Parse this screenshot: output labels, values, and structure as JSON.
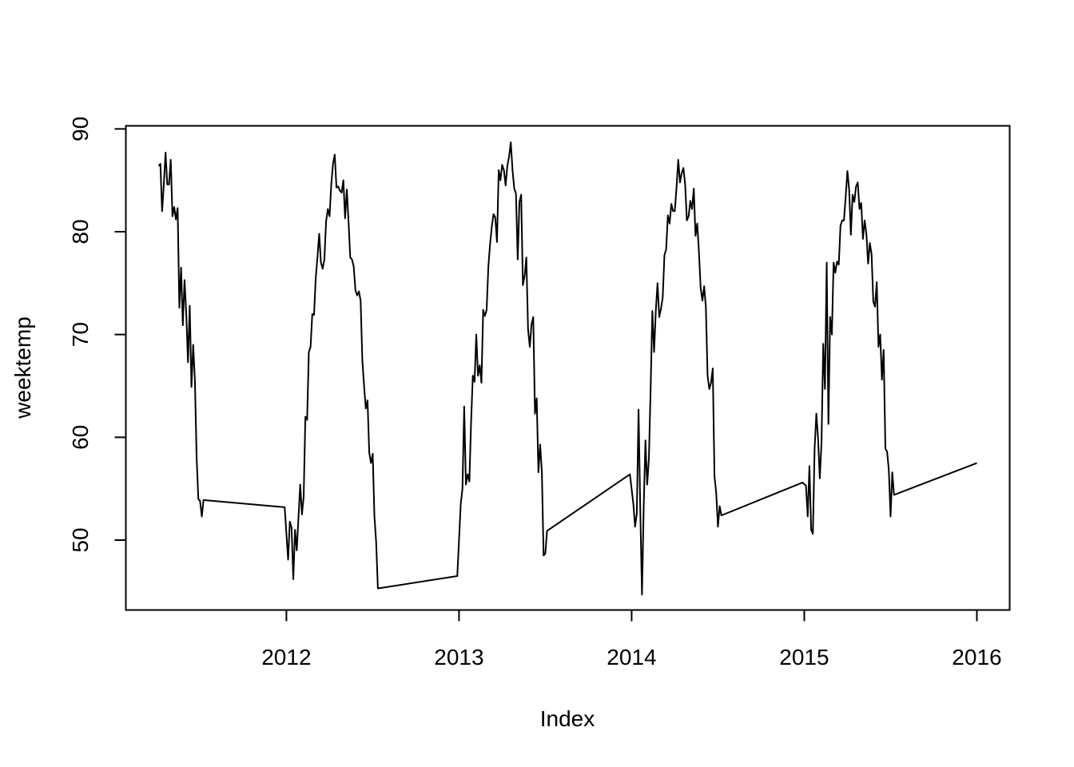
{
  "chart_data": {
    "type": "line",
    "title": "",
    "xlabel": "Index",
    "ylabel": "weektemp",
    "xlim": [
      2011.07,
      2016.19
    ],
    "ylim": [
      43.2,
      90.3
    ],
    "x_ticks": [
      2012,
      2013,
      2014,
      2015,
      2016
    ],
    "x_tick_labels": [
      "2012",
      "2013",
      "2014",
      "2015",
      "2016"
    ],
    "y_ticks": [
      50,
      60,
      70,
      80,
      90
    ],
    "y_tick_labels": [
      "50",
      "60",
      "70",
      "80",
      "90"
    ],
    "grid": false,
    "legend": "none",
    "line_color": "#000000",
    "series": [
      {
        "points": [
          [
            2011.26,
            86.4
          ],
          [
            2011.27,
            86.6
          ],
          [
            2011.28,
            82.0
          ],
          [
            2011.29,
            84.6
          ],
          [
            2011.3,
            87.7
          ],
          [
            2011.31,
            84.6
          ],
          [
            2011.32,
            84.6
          ],
          [
            2011.33,
            87.0
          ],
          [
            2011.34,
            81.5
          ],
          [
            2011.35,
            82.4
          ],
          [
            2011.36,
            81.2
          ],
          [
            2011.37,
            82.3
          ],
          [
            2011.38,
            72.6
          ],
          [
            2011.39,
            76.5
          ],
          [
            2011.4,
            70.9
          ],
          [
            2011.41,
            75.3
          ],
          [
            2011.42,
            72.0
          ],
          [
            2011.43,
            67.3
          ],
          [
            2011.44,
            72.8
          ],
          [
            2011.45,
            64.9
          ],
          [
            2011.46,
            69.0
          ],
          [
            2011.47,
            65.5
          ],
          [
            2011.48,
            58.0
          ],
          [
            2011.49,
            54.0
          ],
          [
            2011.5,
            53.8
          ],
          [
            2011.51,
            52.3
          ],
          [
            2011.52,
            53.9
          ],
          [
            2011.99,
            53.2
          ],
          [
            2012.01,
            48.1
          ],
          [
            2012.02,
            51.8
          ],
          [
            2012.03,
            51.2
          ],
          [
            2012.04,
            46.2
          ],
          [
            2012.05,
            51.0
          ],
          [
            2012.06,
            49.0
          ],
          [
            2012.08,
            55.4
          ],
          [
            2012.09,
            52.5
          ],
          [
            2012.1,
            54.2
          ],
          [
            2012.11,
            62.0
          ],
          [
            2012.12,
            61.7
          ],
          [
            2012.13,
            68.3
          ],
          [
            2012.14,
            68.8
          ],
          [
            2012.15,
            72.0
          ],
          [
            2012.16,
            71.9
          ],
          [
            2012.17,
            75.5
          ],
          [
            2012.18,
            77.5
          ],
          [
            2012.19,
            79.8
          ],
          [
            2012.2,
            77.0
          ],
          [
            2012.21,
            76.4
          ],
          [
            2012.22,
            77.3
          ],
          [
            2012.23,
            81.0
          ],
          [
            2012.24,
            82.2
          ],
          [
            2012.25,
            81.5
          ],
          [
            2012.26,
            84.6
          ],
          [
            2012.27,
            86.6
          ],
          [
            2012.28,
            87.5
          ],
          [
            2012.29,
            84.3
          ],
          [
            2012.3,
            84.4
          ],
          [
            2012.31,
            84.0
          ],
          [
            2012.32,
            83.8
          ],
          [
            2012.33,
            85.0
          ],
          [
            2012.34,
            81.3
          ],
          [
            2012.35,
            84.1
          ],
          [
            2012.36,
            81.0
          ],
          [
            2012.37,
            77.5
          ],
          [
            2012.38,
            77.3
          ],
          [
            2012.39,
            76.6
          ],
          [
            2012.4,
            74.3
          ],
          [
            2012.41,
            73.8
          ],
          [
            2012.42,
            74.2
          ],
          [
            2012.43,
            73.3
          ],
          [
            2012.44,
            67.5
          ],
          [
            2012.45,
            65.0
          ],
          [
            2012.46,
            62.8
          ],
          [
            2012.47,
            63.6
          ],
          [
            2012.48,
            58.5
          ],
          [
            2012.49,
            57.5
          ],
          [
            2012.5,
            58.4
          ],
          [
            2012.51,
            52.3
          ],
          [
            2012.52,
            49.8
          ],
          [
            2012.53,
            45.3
          ],
          [
            2012.99,
            46.5
          ],
          [
            2013.01,
            53.5
          ],
          [
            2013.02,
            55.0
          ],
          [
            2013.03,
            63.0
          ],
          [
            2013.04,
            55.4
          ],
          [
            2013.05,
            56.4
          ],
          [
            2013.06,
            55.7
          ],
          [
            2013.07,
            61.5
          ],
          [
            2013.08,
            66.0
          ],
          [
            2013.09,
            65.4
          ],
          [
            2013.1,
            70.0
          ],
          [
            2013.11,
            66.0
          ],
          [
            2013.12,
            67.0
          ],
          [
            2013.13,
            65.3
          ],
          [
            2013.14,
            72.4
          ],
          [
            2013.15,
            71.8
          ],
          [
            2013.16,
            72.4
          ],
          [
            2013.17,
            76.6
          ],
          [
            2013.18,
            78.8
          ],
          [
            2013.19,
            80.5
          ],
          [
            2013.2,
            81.7
          ],
          [
            2013.21,
            81.4
          ],
          [
            2013.22,
            79.0
          ],
          [
            2013.23,
            86.0
          ],
          [
            2013.24,
            85.0
          ],
          [
            2013.25,
            86.5
          ],
          [
            2013.26,
            86.0
          ],
          [
            2013.27,
            84.5
          ],
          [
            2013.28,
            86.4
          ],
          [
            2013.29,
            87.3
          ],
          [
            2013.3,
            88.7
          ],
          [
            2013.31,
            86.0
          ],
          [
            2013.32,
            84.2
          ],
          [
            2013.33,
            83.7
          ],
          [
            2013.34,
            77.3
          ],
          [
            2013.35,
            82.9
          ],
          [
            2013.36,
            83.6
          ],
          [
            2013.37,
            74.8
          ],
          [
            2013.38,
            75.7
          ],
          [
            2013.39,
            77.5
          ],
          [
            2013.4,
            70.5
          ],
          [
            2013.41,
            68.8
          ],
          [
            2013.42,
            71.0
          ],
          [
            2013.43,
            71.7
          ],
          [
            2013.44,
            62.3
          ],
          [
            2013.45,
            63.8
          ],
          [
            2013.46,
            56.6
          ],
          [
            2013.47,
            59.3
          ],
          [
            2013.48,
            56.6
          ],
          [
            2013.49,
            48.5
          ],
          [
            2013.5,
            48.7
          ],
          [
            2013.51,
            50.9
          ],
          [
            2013.99,
            56.4
          ],
          [
            2014.01,
            53.5
          ],
          [
            2014.02,
            51.3
          ],
          [
            2014.03,
            52.6
          ],
          [
            2014.04,
            62.7
          ],
          [
            2014.05,
            53.0
          ],
          [
            2014.06,
            44.7
          ],
          [
            2014.07,
            53.3
          ],
          [
            2014.08,
            59.7
          ],
          [
            2014.09,
            55.4
          ],
          [
            2014.1,
            57.9
          ],
          [
            2014.11,
            64.7
          ],
          [
            2014.12,
            72.3
          ],
          [
            2014.13,
            68.3
          ],
          [
            2014.14,
            72.3
          ],
          [
            2014.15,
            75.0
          ],
          [
            2014.16,
            71.7
          ],
          [
            2014.17,
            72.5
          ],
          [
            2014.18,
            73.6
          ],
          [
            2014.19,
            77.7
          ],
          [
            2014.2,
            78.3
          ],
          [
            2014.21,
            81.6
          ],
          [
            2014.22,
            80.8
          ],
          [
            2014.23,
            82.7
          ],
          [
            2014.24,
            82.0
          ],
          [
            2014.25,
            82.0
          ],
          [
            2014.26,
            84.3
          ],
          [
            2014.27,
            87.0
          ],
          [
            2014.28,
            84.8
          ],
          [
            2014.29,
            85.7
          ],
          [
            2014.3,
            86.2
          ],
          [
            2014.31,
            84.6
          ],
          [
            2014.32,
            81.1
          ],
          [
            2014.33,
            81.5
          ],
          [
            2014.34,
            83.0
          ],
          [
            2014.35,
            82.2
          ],
          [
            2014.36,
            84.2
          ],
          [
            2014.37,
            79.6
          ],
          [
            2014.38,
            80.8
          ],
          [
            2014.39,
            78.0
          ],
          [
            2014.4,
            74.5
          ],
          [
            2014.41,
            73.3
          ],
          [
            2014.42,
            74.7
          ],
          [
            2014.43,
            72.7
          ],
          [
            2014.44,
            66.0
          ],
          [
            2014.45,
            64.7
          ],
          [
            2014.46,
            65.3
          ],
          [
            2014.47,
            66.7
          ],
          [
            2014.48,
            56.2
          ],
          [
            2014.49,
            54.6
          ],
          [
            2014.5,
            51.3
          ],
          [
            2014.51,
            53.3
          ],
          [
            2014.52,
            52.4
          ],
          [
            2014.99,
            55.6
          ],
          [
            2015.01,
            55.3
          ],
          [
            2015.02,
            52.3
          ],
          [
            2015.03,
            57.2
          ],
          [
            2015.04,
            51.0
          ],
          [
            2015.05,
            50.6
          ],
          [
            2015.06,
            58.9
          ],
          [
            2015.07,
            62.3
          ],
          [
            2015.08,
            59.9
          ],
          [
            2015.09,
            56.0
          ],
          [
            2015.1,
            59.5
          ],
          [
            2015.11,
            69.1
          ],
          [
            2015.12,
            64.7
          ],
          [
            2015.13,
            77.0
          ],
          [
            2015.14,
            61.3
          ],
          [
            2015.15,
            71.7
          ],
          [
            2015.16,
            70.0
          ],
          [
            2015.17,
            77.0
          ],
          [
            2015.18,
            76.0
          ],
          [
            2015.19,
            77.1
          ],
          [
            2015.2,
            76.8
          ],
          [
            2015.21,
            80.6
          ],
          [
            2015.22,
            81.1
          ],
          [
            2015.23,
            81.1
          ],
          [
            2015.24,
            83.4
          ],
          [
            2015.25,
            85.9
          ],
          [
            2015.26,
            84.1
          ],
          [
            2015.27,
            79.7
          ],
          [
            2015.28,
            83.6
          ],
          [
            2015.29,
            82.9
          ],
          [
            2015.3,
            84.4
          ],
          [
            2015.31,
            84.8
          ],
          [
            2015.32,
            82.2
          ],
          [
            2015.33,
            82.8
          ],
          [
            2015.34,
            79.3
          ],
          [
            2015.35,
            81.1
          ],
          [
            2015.36,
            79.8
          ],
          [
            2015.37,
            76.9
          ],
          [
            2015.38,
            78.9
          ],
          [
            2015.39,
            77.8
          ],
          [
            2015.4,
            73.2
          ],
          [
            2015.41,
            72.7
          ],
          [
            2015.42,
            75.1
          ],
          [
            2015.43,
            68.8
          ],
          [
            2015.44,
            70.0
          ],
          [
            2015.45,
            65.6
          ],
          [
            2015.46,
            68.5
          ],
          [
            2015.47,
            58.9
          ],
          [
            2015.48,
            58.6
          ],
          [
            2015.49,
            56.8
          ],
          [
            2015.5,
            52.3
          ],
          [
            2015.51,
            56.6
          ],
          [
            2015.52,
            54.4
          ],
          [
            2016.0,
            57.5
          ]
        ]
      }
    ]
  }
}
